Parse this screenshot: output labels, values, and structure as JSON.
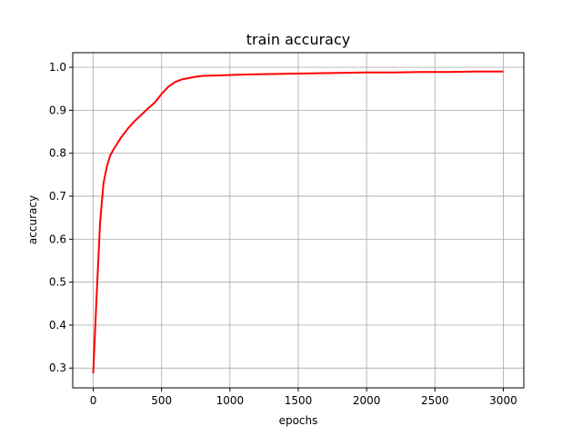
{
  "chart_data": {
    "type": "line",
    "title": "train accuracy",
    "xlabel": "epochs",
    "ylabel": "accuracy",
    "xlim": [
      -150,
      3150
    ],
    "ylim": [
      0.254,
      1.034
    ],
    "grid": true,
    "xticks": [
      0,
      500,
      1000,
      1500,
      2000,
      2500,
      3000
    ],
    "yticks": [
      0.3,
      0.4,
      0.5,
      0.6,
      0.7,
      0.8,
      0.9,
      1.0
    ],
    "xtick_labels": [
      "0",
      "500",
      "1000",
      "1500",
      "2000",
      "2500",
      "3000"
    ],
    "ytick_labels": [
      "0.3",
      "0.4",
      "0.5",
      "0.6",
      "0.7",
      "0.8",
      "0.9",
      "1.0"
    ],
    "series": [
      {
        "color": "#ff0000",
        "x": [
          0,
          25,
          50,
          75,
          100,
          125,
          150,
          175,
          200,
          250,
          300,
          350,
          400,
          450,
          500,
          550,
          600,
          650,
          700,
          750,
          800,
          900,
          1000,
          1100,
          1200,
          1400,
          1600,
          1800,
          2000,
          2200,
          2400,
          2600,
          2800,
          3000
        ],
        "y": [
          0.288,
          0.47,
          0.64,
          0.73,
          0.77,
          0.795,
          0.81,
          0.822,
          0.835,
          0.856,
          0.874,
          0.889,
          0.904,
          0.918,
          0.938,
          0.955,
          0.966,
          0.972,
          0.975,
          0.978,
          0.98,
          0.981,
          0.982,
          0.983,
          0.984,
          0.985,
          0.986,
          0.987,
          0.988,
          0.988,
          0.989,
          0.989,
          0.99,
          0.99
        ]
      }
    ]
  }
}
